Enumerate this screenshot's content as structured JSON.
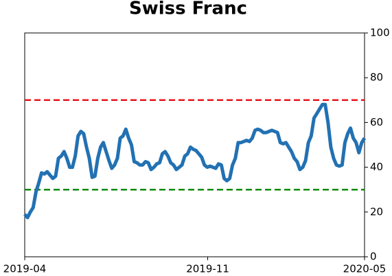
{
  "chart_data": {
    "type": "line",
    "title": "Swiss Franc",
    "xlim": [
      "2019-04",
      "2020-05"
    ],
    "xticks": [
      "2019-04",
      "2019-11",
      "2020-05"
    ],
    "ylim": [
      0,
      100
    ],
    "yticks": [
      0,
      20,
      40,
      60,
      80,
      100
    ],
    "hlines": [
      {
        "value": 70,
        "color": "#e8141c"
      },
      {
        "value": 30,
        "color": "#0a8a0a"
      }
    ],
    "series": [
      {
        "color": "#2271b3",
        "values": [
          19,
          17.5,
          20,
          22,
          29,
          33,
          37.5,
          37,
          38,
          36.5,
          35,
          36,
          44,
          45,
          47,
          44,
          40,
          40,
          45,
          54,
          56,
          55,
          49,
          44,
          35.5,
          36,
          44,
          49,
          51,
          47,
          43,
          39.5,
          41,
          44,
          53,
          54,
          57,
          53,
          50,
          42.5,
          42,
          41,
          41,
          42.5,
          42,
          39,
          40,
          41.5,
          42,
          46,
          47,
          45,
          42,
          41,
          39,
          40,
          41,
          45,
          46,
          49,
          48,
          47.5,
          46,
          44.5,
          41,
          40,
          40.5,
          40,
          39.5,
          41.5,
          41,
          35,
          34,
          35,
          41,
          44,
          51,
          51,
          51.5,
          52,
          51.5,
          53,
          56.5,
          57,
          56.5,
          55.5,
          55.5,
          56,
          56.5,
          56,
          55.5,
          51,
          50.5,
          51,
          49,
          47,
          44,
          42.5,
          39,
          40,
          43,
          51,
          54,
          62,
          64,
          66,
          68,
          68,
          60,
          49,
          44,
          41,
          40.5,
          41,
          51,
          55,
          57.5,
          53,
          51,
          46.5,
          51,
          53
        ]
      }
    ]
  }
}
